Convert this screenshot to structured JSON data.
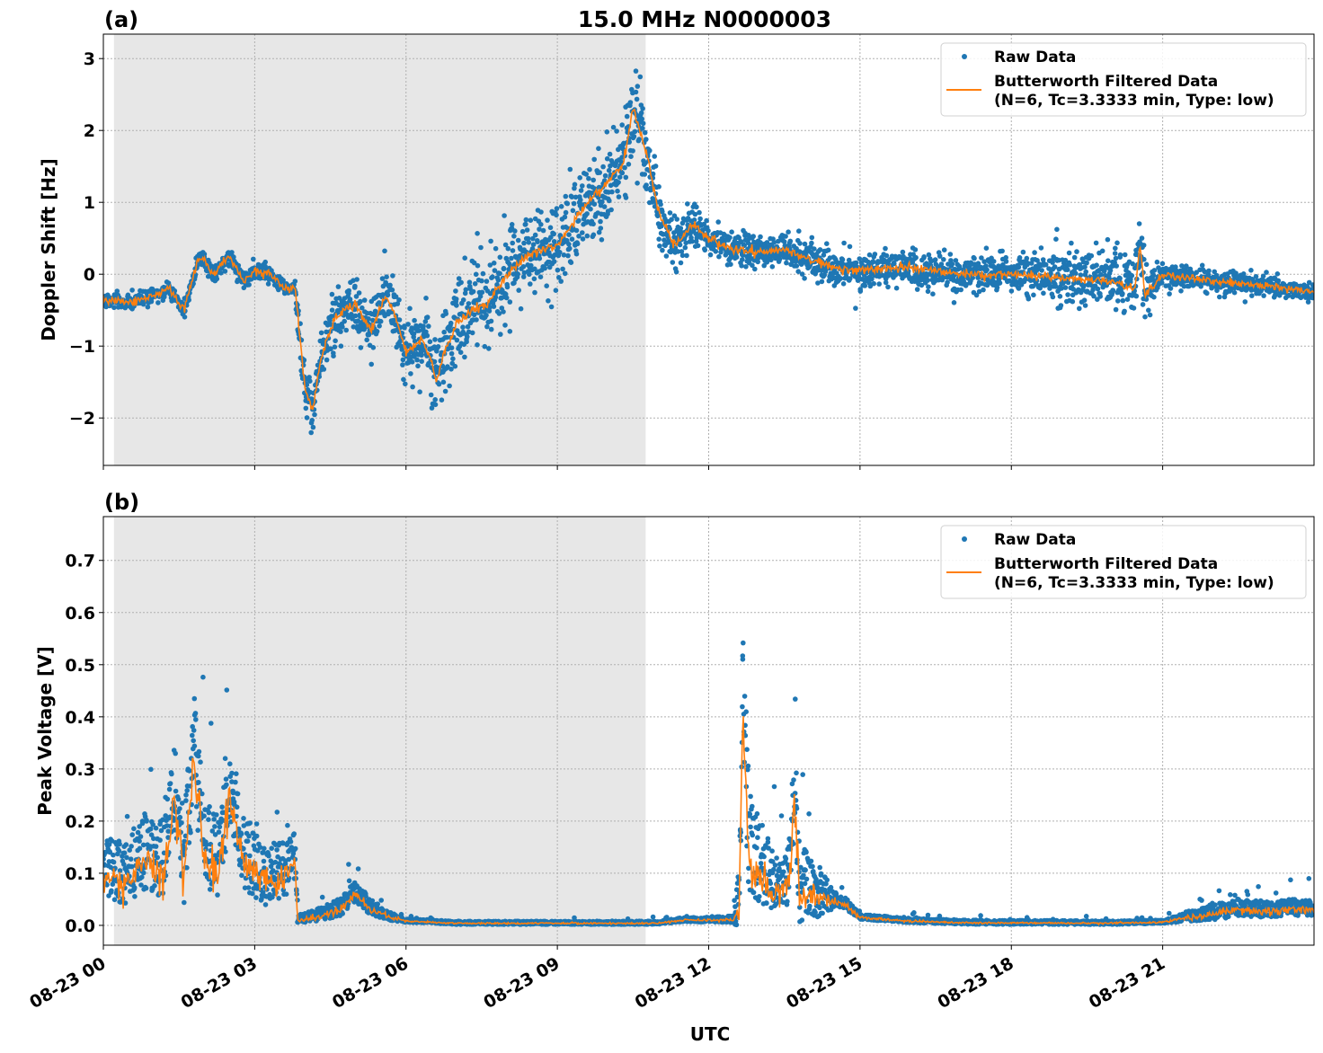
{
  "title": "15.0 MHz N0000003",
  "xlabel": "UTC",
  "chart_data": [
    {
      "type": "scatter",
      "panel_label": "(a)",
      "ylabel": "Doppler Shift [Hz]",
      "xlim_hours": [
        0,
        24
      ],
      "ylim": [
        -2.66,
        3.34
      ],
      "yticks": [
        3,
        2,
        1,
        0,
        -1,
        -2
      ],
      "ytick_labels": [
        "3",
        "2",
        "1",
        "0",
        "−1",
        "−2"
      ],
      "grid": true,
      "shaded_interval_hours": [
        0.21,
        10.75
      ],
      "legend": {
        "placement": "top-right",
        "entries": [
          "Raw Data",
          "Butterworth Filtered Data",
          "(N=6, Tc=3.3333 min, Type: low)"
        ]
      },
      "series": [
        {
          "name": "Butterworth Filtered Data",
          "color": "#ff7f0e",
          "keypoints": [
            [
              0,
              -0.35
            ],
            [
              0.5,
              -0.4
            ],
            [
              1,
              -0.3
            ],
            [
              1.3,
              -0.2
            ],
            [
              1.6,
              -0.5
            ],
            [
              1.9,
              0.25
            ],
            [
              2.2,
              0.0
            ],
            [
              2.5,
              0.25
            ],
            [
              2.8,
              -0.1
            ],
            [
              3.0,
              0.05
            ],
            [
              3.3,
              0.0
            ],
            [
              3.6,
              -0.2
            ],
            [
              3.8,
              -0.2
            ],
            [
              4.0,
              -1.6
            ],
            [
              4.15,
              -1.9
            ],
            [
              4.3,
              -1.2
            ],
            [
              4.6,
              -0.6
            ],
            [
              5.0,
              -0.4
            ],
            [
              5.3,
              -0.8
            ],
            [
              5.6,
              -0.3
            ],
            [
              5.8,
              -0.6
            ],
            [
              6.0,
              -1.1
            ],
            [
              6.3,
              -0.9
            ],
            [
              6.5,
              -1.2
            ],
            [
              6.6,
              -1.5
            ],
            [
              6.8,
              -1.0
            ],
            [
              7.0,
              -0.7
            ],
            [
              7.3,
              -0.5
            ],
            [
              7.6,
              -0.4
            ],
            [
              8.0,
              0.0
            ],
            [
              8.5,
              0.3
            ],
            [
              9.0,
              0.4
            ],
            [
              9.5,
              0.9
            ],
            [
              10.0,
              1.3
            ],
            [
              10.3,
              1.5
            ],
            [
              10.5,
              2.3
            ],
            [
              10.8,
              1.6
            ],
            [
              11.0,
              0.9
            ],
            [
              11.3,
              0.4
            ],
            [
              11.7,
              0.7
            ],
            [
              12,
              0.5
            ],
            [
              12.5,
              0.35
            ],
            [
              13,
              0.3
            ],
            [
              13.5,
              0.35
            ],
            [
              14,
              0.2
            ],
            [
              14.5,
              0.1
            ],
            [
              15,
              0.05
            ],
            [
              16,
              0.1
            ],
            [
              17,
              0.0
            ],
            [
              18,
              0.0
            ],
            [
              19,
              -0.05
            ],
            [
              20,
              -0.1
            ],
            [
              20.45,
              -0.2
            ],
            [
              20.55,
              0.4
            ],
            [
              20.65,
              -0.3
            ],
            [
              21,
              0.0
            ],
            [
              22,
              -0.1
            ],
            [
              23,
              -0.15
            ],
            [
              24,
              -0.25
            ]
          ]
        },
        {
          "name": "Raw Data",
          "color": "#1f77b4",
          "spread": [
            [
              0,
              0.08
            ],
            [
              3.8,
              0.1
            ],
            [
              4,
              0.3
            ],
            [
              6,
              0.35
            ],
            [
              7,
              0.5
            ],
            [
              10.5,
              0.5
            ],
            [
              11,
              0.35
            ],
            [
              12,
              0.2
            ],
            [
              18,
              0.2
            ],
            [
              19,
              0.35
            ],
            [
              20.7,
              0.35
            ],
            [
              21,
              0.15
            ],
            [
              24,
              0.1
            ]
          ]
        }
      ]
    },
    {
      "type": "scatter",
      "panel_label": "(b)",
      "ylabel": "Peak Voltage [V]",
      "xlim_hours": [
        0,
        24
      ],
      "ylim": [
        -0.038,
        0.784
      ],
      "yticks": [
        0.7,
        0.6,
        0.5,
        0.4,
        0.3,
        0.2,
        0.1,
        0.0
      ],
      "ytick_labels": [
        "0.7",
        "0.6",
        "0.5",
        "0.4",
        "0.3",
        "0.2",
        "0.1",
        "0.0"
      ],
      "grid": true,
      "shaded_interval_hours": [
        0.21,
        10.75
      ],
      "legend": {
        "placement": "top-right",
        "entries": [
          "Raw Data",
          "Butterworth Filtered Data",
          "(N=6, Tc=3.3333 min, Type: low)"
        ]
      },
      "series": [
        {
          "name": "Butterworth Filtered Data",
          "color": "#ff7f0e",
          "keypoints": [
            [
              0,
              0.1
            ],
            [
              0.4,
              0.08
            ],
            [
              0.8,
              0.12
            ],
            [
              1.2,
              0.1
            ],
            [
              1.4,
              0.25
            ],
            [
              1.6,
              0.1
            ],
            [
              1.8,
              0.32
            ],
            [
              2.0,
              0.12
            ],
            [
              2.3,
              0.1
            ],
            [
              2.5,
              0.25
            ],
            [
              2.8,
              0.12
            ],
            [
              3.2,
              0.08
            ],
            [
              3.6,
              0.09
            ],
            [
              3.8,
              0.12
            ],
            [
              3.85,
              0.01
            ],
            [
              4.2,
              0.015
            ],
            [
              4.7,
              0.03
            ],
            [
              5.0,
              0.06
            ],
            [
              5.3,
              0.03
            ],
            [
              5.7,
              0.015
            ],
            [
              6,
              0.008
            ],
            [
              7,
              0.004
            ],
            [
              11,
              0.004
            ],
            [
              11.5,
              0.01
            ],
            [
              12.5,
              0.01
            ],
            [
              12.6,
              0.03
            ],
            [
              12.68,
              0.41
            ],
            [
              12.8,
              0.12
            ],
            [
              13.0,
              0.1
            ],
            [
              13.3,
              0.06
            ],
            [
              13.6,
              0.08
            ],
            [
              13.7,
              0.25
            ],
            [
              13.8,
              0.06
            ],
            [
              14.2,
              0.05
            ],
            [
              14.7,
              0.04
            ],
            [
              15,
              0.015
            ],
            [
              16,
              0.008
            ],
            [
              17,
              0.005
            ],
            [
              20,
              0.004
            ],
            [
              21,
              0.006
            ],
            [
              21.5,
              0.015
            ],
            [
              22,
              0.02
            ],
            [
              22.5,
              0.03
            ],
            [
              23,
              0.025
            ],
            [
              23.5,
              0.03
            ],
            [
              24,
              0.03
            ]
          ]
        },
        {
          "name": "Raw Data",
          "color": "#1f77b4",
          "spread": [
            [
              0,
              0.07
            ],
            [
              1.8,
              0.12
            ],
            [
              3.8,
              0.06
            ],
            [
              3.85,
              0.01
            ],
            [
              5.0,
              0.025
            ],
            [
              6,
              0.004
            ],
            [
              11,
              0.004
            ],
            [
              12.5,
              0.008
            ],
            [
              12.7,
              0.15
            ],
            [
              13.5,
              0.05
            ],
            [
              13.7,
              0.12
            ],
            [
              14.5,
              0.02
            ],
            [
              15,
              0.006
            ],
            [
              21,
              0.004
            ],
            [
              22,
              0.02
            ],
            [
              24,
              0.02
            ]
          ]
        }
      ]
    }
  ],
  "xtick_labels": [
    "08-23 00",
    "08-23 03",
    "08-23 06",
    "08-23 09",
    "08-23 12",
    "08-23 15",
    "08-23 18",
    "08-23 21"
  ],
  "xtick_hours": [
    0,
    3,
    6,
    9,
    12,
    15,
    18,
    21
  ]
}
